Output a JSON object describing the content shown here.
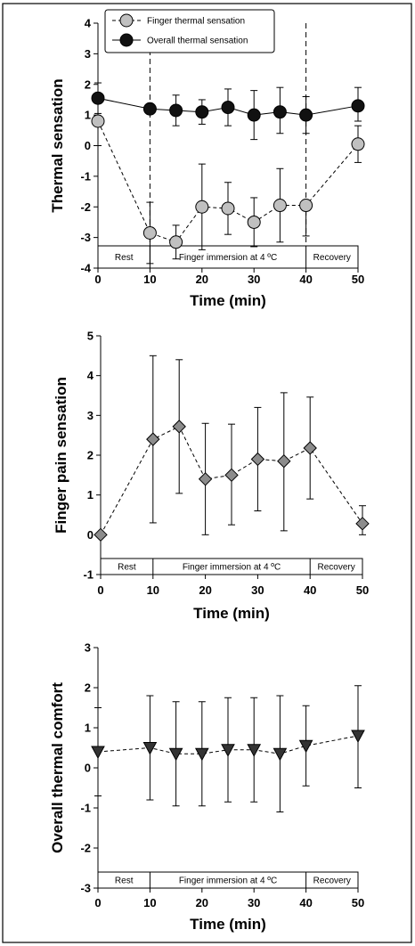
{
  "chart_data": [
    {
      "type": "scatter",
      "xlabel": "Time (min)",
      "ylabel": "Thermal sensation",
      "xlim": [
        0,
        50
      ],
      "ylim": [
        -4,
        4
      ],
      "xticks": [
        "0",
        "10",
        "20",
        "30",
        "40",
        "50"
      ],
      "yticks": [
        "-4",
        "-3",
        "-2",
        "-1",
        "0",
        "1",
        "2",
        "3",
        "4"
      ],
      "phases": [
        {
          "label": "Rest",
          "from": 0,
          "to": 10
        },
        {
          "label": "Finger immersion at 4 ºC",
          "from": 10,
          "to": 40
        },
        {
          "label": "Recovery",
          "from": 40,
          "to": 50
        }
      ],
      "vlines": [
        10,
        40
      ],
      "legend": "top-left",
      "series": [
        {
          "name": "Finger thermal sensation",
          "marker": "circle",
          "fill": "#c0c0c0",
          "line": "dashed",
          "x": [
            0,
            10,
            15,
            20,
            25,
            30,
            35,
            40,
            50
          ],
          "values": [
            0.8,
            -2.85,
            -3.15,
            -2.0,
            -2.05,
            -2.5,
            -1.95,
            -1.95,
            0.05
          ],
          "err_low": [
            0.8,
            1.0,
            0.55,
            1.4,
            0.85,
            0.8,
            1.2,
            1.0,
            0.6
          ],
          "err_high": [
            0.8,
            1.0,
            0.55,
            1.4,
            0.85,
            0.8,
            1.2,
            0.0,
            0.6
          ]
        },
        {
          "name": "Overall thermal sensation",
          "marker": "circle",
          "fill": "#111111",
          "line": "solid",
          "x": [
            0,
            10,
            15,
            20,
            25,
            30,
            35,
            40,
            50
          ],
          "values": [
            1.55,
            1.2,
            1.15,
            1.1,
            1.25,
            1.0,
            1.1,
            1.0,
            1.3
          ],
          "err_low": [
            0.5,
            0.0,
            0.5,
            0.4,
            0.6,
            0.8,
            0.7,
            0.6,
            0.5
          ],
          "err_high": [
            0.5,
            0.0,
            0.5,
            0.4,
            0.6,
            0.8,
            0.8,
            0.6,
            0.6
          ]
        }
      ]
    },
    {
      "type": "scatter",
      "xlabel": "Time (min)",
      "ylabel": "Finger pain sensation",
      "xlim": [
        0,
        50
      ],
      "ylim": [
        -1,
        5
      ],
      "xticks": [
        "0",
        "10",
        "20",
        "30",
        "40",
        "50"
      ],
      "yticks": [
        "-1",
        "0",
        "1",
        "2",
        "3",
        "4",
        "5"
      ],
      "phases": [
        {
          "label": "Rest",
          "from": 0,
          "to": 10
        },
        {
          "label": "Finger immersion at 4 ºC",
          "from": 10,
          "to": 40
        },
        {
          "label": "Recovery",
          "from": 40,
          "to": 50
        }
      ],
      "vlines": [],
      "series": [
        {
          "marker": "diamond",
          "fill": "#8c8c8c",
          "line": "dashed",
          "x": [
            0,
            10,
            15,
            20,
            25,
            30,
            35,
            40,
            50
          ],
          "values": [
            0.0,
            2.4,
            2.72,
            1.4,
            1.5,
            1.9,
            1.85,
            2.18,
            0.28
          ],
          "err_low": [
            0.0,
            2.1,
            1.68,
            1.4,
            1.25,
            1.3,
            1.75,
            1.28,
            0.28
          ],
          "err_high": [
            0.0,
            2.1,
            1.68,
            1.4,
            1.28,
            1.3,
            1.72,
            1.28,
            0.45
          ]
        }
      ]
    },
    {
      "type": "scatter",
      "xlabel": "Time (min)",
      "ylabel": "Overall thermal comfort",
      "xlim": [
        0,
        50
      ],
      "ylim": [
        -3,
        3
      ],
      "xticks": [
        "0",
        "10",
        "20",
        "30",
        "40",
        "50"
      ],
      "yticks": [
        "-3",
        "-2",
        "-1",
        "0",
        "1",
        "2",
        "3"
      ],
      "phases": [
        {
          "label": "Rest",
          "from": 0,
          "to": 10
        },
        {
          "label": "Finger immersion at 4 ºC",
          "from": 10,
          "to": 40
        },
        {
          "label": "Recovery",
          "from": 40,
          "to": 50
        }
      ],
      "vlines": [],
      "series": [
        {
          "marker": "triangle-down",
          "fill": "#333333",
          "line": "dashed",
          "x": [
            0,
            10,
            15,
            20,
            25,
            30,
            35,
            40,
            50
          ],
          "values": [
            0.4,
            0.5,
            0.35,
            0.35,
            0.45,
            0.45,
            0.35,
            0.55,
            0.8
          ],
          "err_low": [
            1.1,
            1.3,
            1.3,
            1.3,
            1.3,
            1.3,
            1.45,
            1.0,
            1.3
          ],
          "err_high": [
            1.1,
            1.3,
            1.3,
            1.3,
            1.3,
            1.3,
            1.45,
            1.0,
            1.25
          ]
        }
      ]
    }
  ]
}
